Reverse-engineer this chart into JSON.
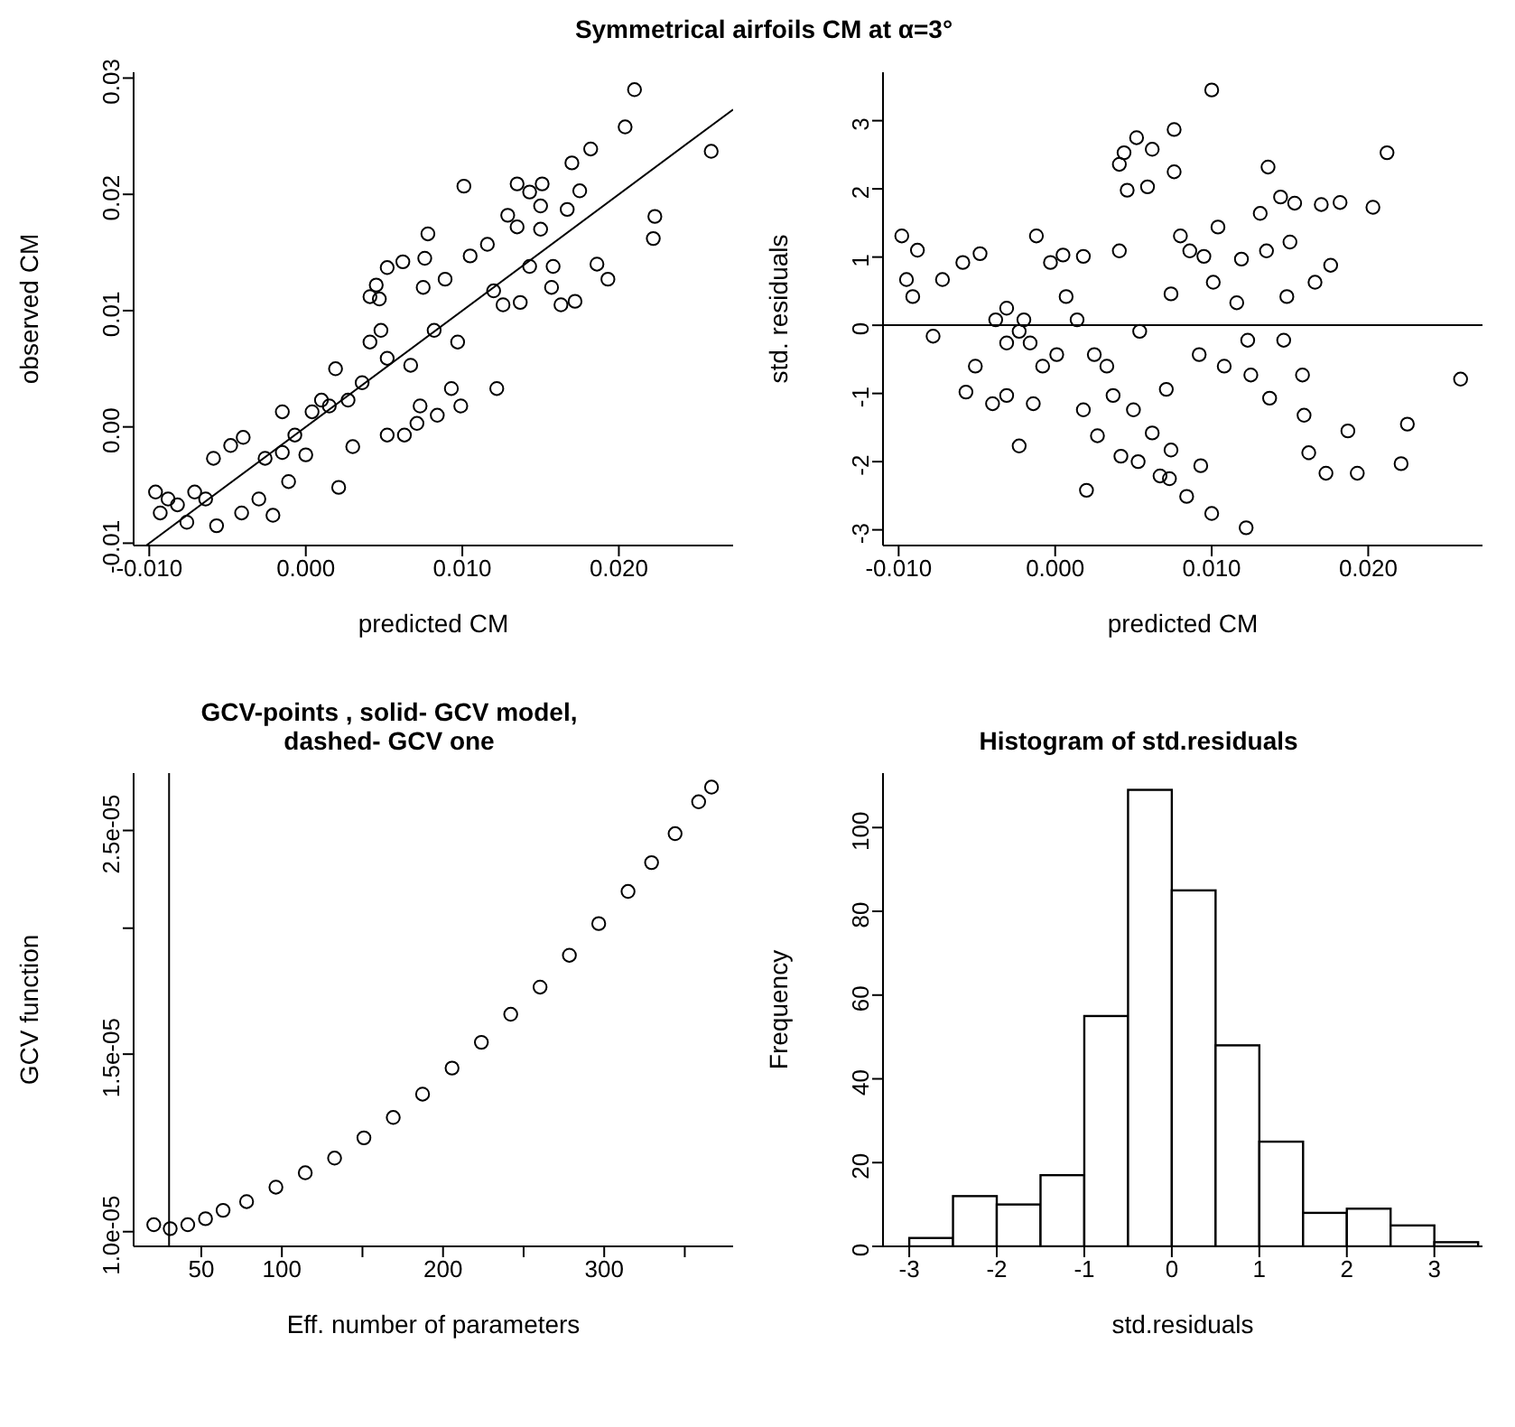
{
  "chart_data": [
    {
      "type": "scatter",
      "title": "Symmetrical airfoils CM at α=3°",
      "xlabel": "predicted CM",
      "ylabel": "observed CM",
      "grid": false,
      "xlim": [
        -0.011,
        0.0273
      ],
      "ylim": [
        -0.0102,
        0.0305
      ],
      "xticks": [
        {
          "value": -0.01,
          "label": "-0.010"
        },
        {
          "value": 0,
          "label": "0.000"
        },
        {
          "value": 0.01,
          "label": "0.010"
        },
        {
          "value": 0.02,
          "label": "0.020"
        }
      ],
      "yticks": [
        {
          "value": -0.01,
          "label": "-0.01"
        },
        {
          "value": 0,
          "label": "0.00"
        },
        {
          "value": 0.01,
          "label": "0.01"
        },
        {
          "value": 0.02,
          "label": "0.02"
        },
        {
          "value": 0.03,
          "label": "0.03"
        }
      ],
      "series": [
        {
          "type": "scatter",
          "color": "#000000",
          "marker": "circle",
          "x": [
            -0.0096,
            -0.0093,
            -0.0088,
            -0.0082,
            -0.0076,
            -0.0071,
            -0.0064,
            -0.0057,
            -0.0059,
            -0.0048,
            -0.0041,
            -0.004,
            -0.003,
            -0.0021,
            -0.0026,
            -0.0015,
            -0.0011,
            -0.0007,
            0.0,
            -0.0015,
            0.0004,
            0.001,
            0.0019,
            0.0021,
            0.0015,
            0.0027,
            0.003,
            0.0036,
            0.0041,
            0.0041,
            0.0047,
            0.0045,
            0.0048,
            0.0052,
            0.0062,
            0.0052,
            0.0052,
            0.0063,
            0.0067,
            0.0071,
            0.0073,
            0.0076,
            0.0078,
            0.0075,
            0.0084,
            0.0082,
            0.0093,
            0.0089,
            0.0097,
            0.0099,
            0.0101,
            0.0105,
            0.0116,
            0.0122,
            0.012,
            0.0126,
            0.0129,
            0.0135,
            0.0135,
            0.0137,
            0.0143,
            0.0143,
            0.0151,
            0.015,
            0.015,
            0.0158,
            0.0157,
            0.0163,
            0.0167,
            0.017,
            0.0172,
            0.0175,
            0.0182,
            0.0186,
            0.0193,
            0.0204,
            0.021,
            0.0222,
            0.0223,
            0.0259
          ],
          "values": [
            -0.0056,
            -0.0074,
            -0.0062,
            -0.0067,
            -0.0082,
            -0.0056,
            -0.0062,
            -0.0085,
            -0.0027,
            -0.0016,
            -0.0074,
            -0.0009,
            -0.0062,
            -0.0076,
            -0.0027,
            -0.0022,
            -0.0047,
            -0.0007,
            -0.0024,
            0.0013,
            0.0013,
            0.0023,
            0.005,
            -0.0052,
            0.0018,
            0.0023,
            -0.0017,
            0.0038,
            0.0073,
            0.0112,
            0.011,
            0.0122,
            0.0083,
            0.0137,
            0.0142,
            0.0059,
            -0.0007,
            -0.0007,
            0.0053,
            0.0003,
            0.0018,
            0.0145,
            0.0166,
            0.012,
            0.001,
            0.0083,
            0.0033,
            0.0127,
            0.0073,
            0.0018,
            0.0207,
            0.0147,
            0.0157,
            0.0033,
            0.0117,
            0.0105,
            0.0182,
            0.0172,
            0.0209,
            0.0107,
            0.0202,
            0.0138,
            0.0209,
            0.019,
            0.017,
            0.0138,
            0.012,
            0.0105,
            0.0187,
            0.0227,
            0.0108,
            0.0203,
            0.0239,
            0.014,
            0.0127,
            0.0258,
            0.029,
            0.0162,
            0.0181,
            0.0237
          ]
        },
        {
          "type": "line",
          "color": "#000000",
          "marker": "none",
          "x": [
            -0.0102,
            0.0273
          ],
          "values": [
            -0.0102,
            0.0273
          ]
        }
      ]
    },
    {
      "type": "scatter",
      "xlabel": "predicted CM",
      "ylabel": "std. residuals",
      "marker": "circle",
      "grid": false,
      "xlim": [
        -0.011,
        0.0273
      ],
      "ylim": [
        -3.23,
        3.71
      ],
      "xticks": [
        {
          "value": -0.01,
          "label": "-0.010"
        },
        {
          "value": 0,
          "label": "0.000"
        },
        {
          "value": 0.01,
          "label": "0.010"
        },
        {
          "value": 0.02,
          "label": "0.020"
        }
      ],
      "yticks": [
        -3,
        -2,
        -1,
        0,
        1,
        2,
        3
      ],
      "ref_lines": [
        {
          "axis": "y",
          "value": 0,
          "color": "#000000"
        }
      ],
      "series": [
        {
          "type": "scatter",
          "color": "#000000",
          "x": [
            -0.0098,
            -0.0095,
            -0.0088,
            -0.0091,
            -0.0078,
            -0.0072,
            -0.0059,
            -0.0057,
            -0.0048,
            -0.0051,
            -0.004,
            -0.0031,
            -0.0023,
            -0.0031,
            -0.0023,
            -0.0014,
            -0.0012,
            -0.0016,
            -0.0003,
            0.0001,
            0.0005,
            0.0014,
            0.0018,
            0.002,
            0.0018,
            0.0027,
            0.0033,
            0.0037,
            0.0041,
            0.0042,
            0.0044,
            0.0041,
            0.0046,
            0.0052,
            0.005,
            0.0053,
            0.0054,
            0.0062,
            0.0059,
            0.0062,
            0.0067,
            0.0073,
            0.0074,
            0.0071,
            0.0076,
            0.0076,
            0.0074,
            0.008,
            0.0084,
            0.0086,
            0.0092,
            0.0093,
            0.0095,
            0.01,
            0.01,
            0.0101,
            0.0104,
            0.0108,
            0.0116,
            0.0119,
            0.0122,
            0.0123,
            0.0125,
            0.0131,
            0.0135,
            0.0136,
            0.0137,
            0.0144,
            0.0146,
            0.0148,
            0.015,
            0.0153,
            0.0158,
            0.0159,
            0.0162,
            0.0166,
            0.017,
            0.0173,
            0.0176,
            0.0182,
            0.0187,
            0.0193,
            0.0203,
            0.0212,
            0.0221,
            0.0225,
            0.0259,
            -0.0038,
            -0.0008,
            0.0007,
            0.0025,
            -0.0031,
            -0.002
          ],
          "values": [
            1.31,
            0.67,
            1.1,
            0.42,
            -0.16,
            0.67,
            0.92,
            -0.98,
            1.05,
            -0.6,
            -1.15,
            -1.03,
            -1.77,
            0.25,
            -0.09,
            -1.15,
            1.31,
            -0.26,
            0.92,
            -0.43,
            1.03,
            0.08,
            1.01,
            -2.42,
            -1.24,
            -1.62,
            -0.6,
            -1.03,
            1.09,
            -1.92,
            2.53,
            2.36,
            1.98,
            2.75,
            -1.24,
            -2.0,
            -0.09,
            2.58,
            2.03,
            -1.58,
            -2.21,
            -2.25,
            -1.83,
            -0.94,
            2.87,
            2.25,
            0.46,
            1.31,
            -2.51,
            1.09,
            -0.43,
            -2.06,
            1.01,
            3.45,
            -2.76,
            0.63,
            1.44,
            -0.6,
            0.33,
            0.97,
            -2.97,
            -0.22,
            -0.73,
            1.64,
            1.09,
            2.32,
            -1.07,
            1.88,
            -0.22,
            0.42,
            1.22,
            1.79,
            -0.73,
            -1.32,
            -1.87,
            0.63,
            1.77,
            -2.17,
            0.88,
            1.8,
            -1.55,
            -2.17,
            1.73,
            2.53,
            -2.03,
            -1.45,
            -0.79,
            0.08,
            -0.6,
            0.42,
            -0.43,
            -0.26,
            0.08
          ]
        }
      ]
    },
    {
      "type": "scatter",
      "title": "GCV-points , solid- GCV model, dashed- GCV one",
      "xlabel": "Eff. number of parameters",
      "ylabel": "GCV function",
      "marker": "circle",
      "grid": false,
      "log": "y",
      "xlim": [
        8,
        380
      ],
      "ylim": [
        9.67e-06,
        2.85e-05
      ],
      "xticks": [
        50,
        100,
        {
          "value": 150,
          "label": null
        },
        200,
        {
          "value": 250,
          "label": null
        },
        300,
        {
          "value": 350,
          "label": null
        }
      ],
      "yticks": [
        {
          "value": 1e-05,
          "label": "1.0e-05"
        },
        {
          "value": 1.5e-05,
          "label": "1.5e-05"
        },
        {
          "value": 2e-05,
          "label": null
        },
        {
          "value": 2.5e-05,
          "label": "2.5e-05"
        }
      ],
      "ref_lines": [
        {
          "axis": "x",
          "value": 30,
          "color": "#000000"
        }
      ],
      "series": [
        {
          "type": "scatter",
          "color": "#000000",
          "x": [
            20.5,
            30.7,
            41.6,
            52.6,
            63.5,
            78.1,
            96.3,
            114.5,
            132.7,
            150.9,
            169.1,
            187.3,
            205.6,
            223.8,
            242.0,
            260.2,
            278.4,
            296.6,
            314.8,
            329.4,
            344.0,
            358.6,
            366.6
          ],
          "values": [
            1.016e-05,
            1.007e-05,
            1.016e-05,
            1.03e-05,
            1.05e-05,
            1.071e-05,
            1.107e-05,
            1.144e-05,
            1.183e-05,
            1.239e-05,
            1.298e-05,
            1.369e-05,
            1.453e-05,
            1.541e-05,
            1.643e-05,
            1.748e-05,
            1.88e-05,
            2.021e-05,
            2.175e-05,
            2.323e-05,
            2.482e-05,
            2.669e-05,
            2.76e-05
          ]
        }
      ]
    },
    {
      "type": "histogram",
      "title": "Histogram of std.residuals",
      "xlabel": "std.residuals",
      "ylabel": "Frequency",
      "color": "#ffffff",
      "grid": false,
      "xlim": [
        -3.3,
        3.55
      ],
      "ylim": [
        0,
        113
      ],
      "xticks": [
        -3,
        -2,
        -1,
        0,
        1,
        2,
        3
      ],
      "yticks": [
        0,
        20,
        40,
        60,
        80,
        100
      ],
      "bins": [
        -3,
        -2.5,
        -2,
        -1.5,
        -1,
        -0.5,
        0,
        0.5,
        1,
        1.5,
        2,
        2.5,
        3,
        3.5
      ],
      "values": [
        2,
        12,
        10,
        17,
        55,
        109,
        85,
        48,
        25,
        8,
        9,
        5,
        1
      ]
    }
  ]
}
